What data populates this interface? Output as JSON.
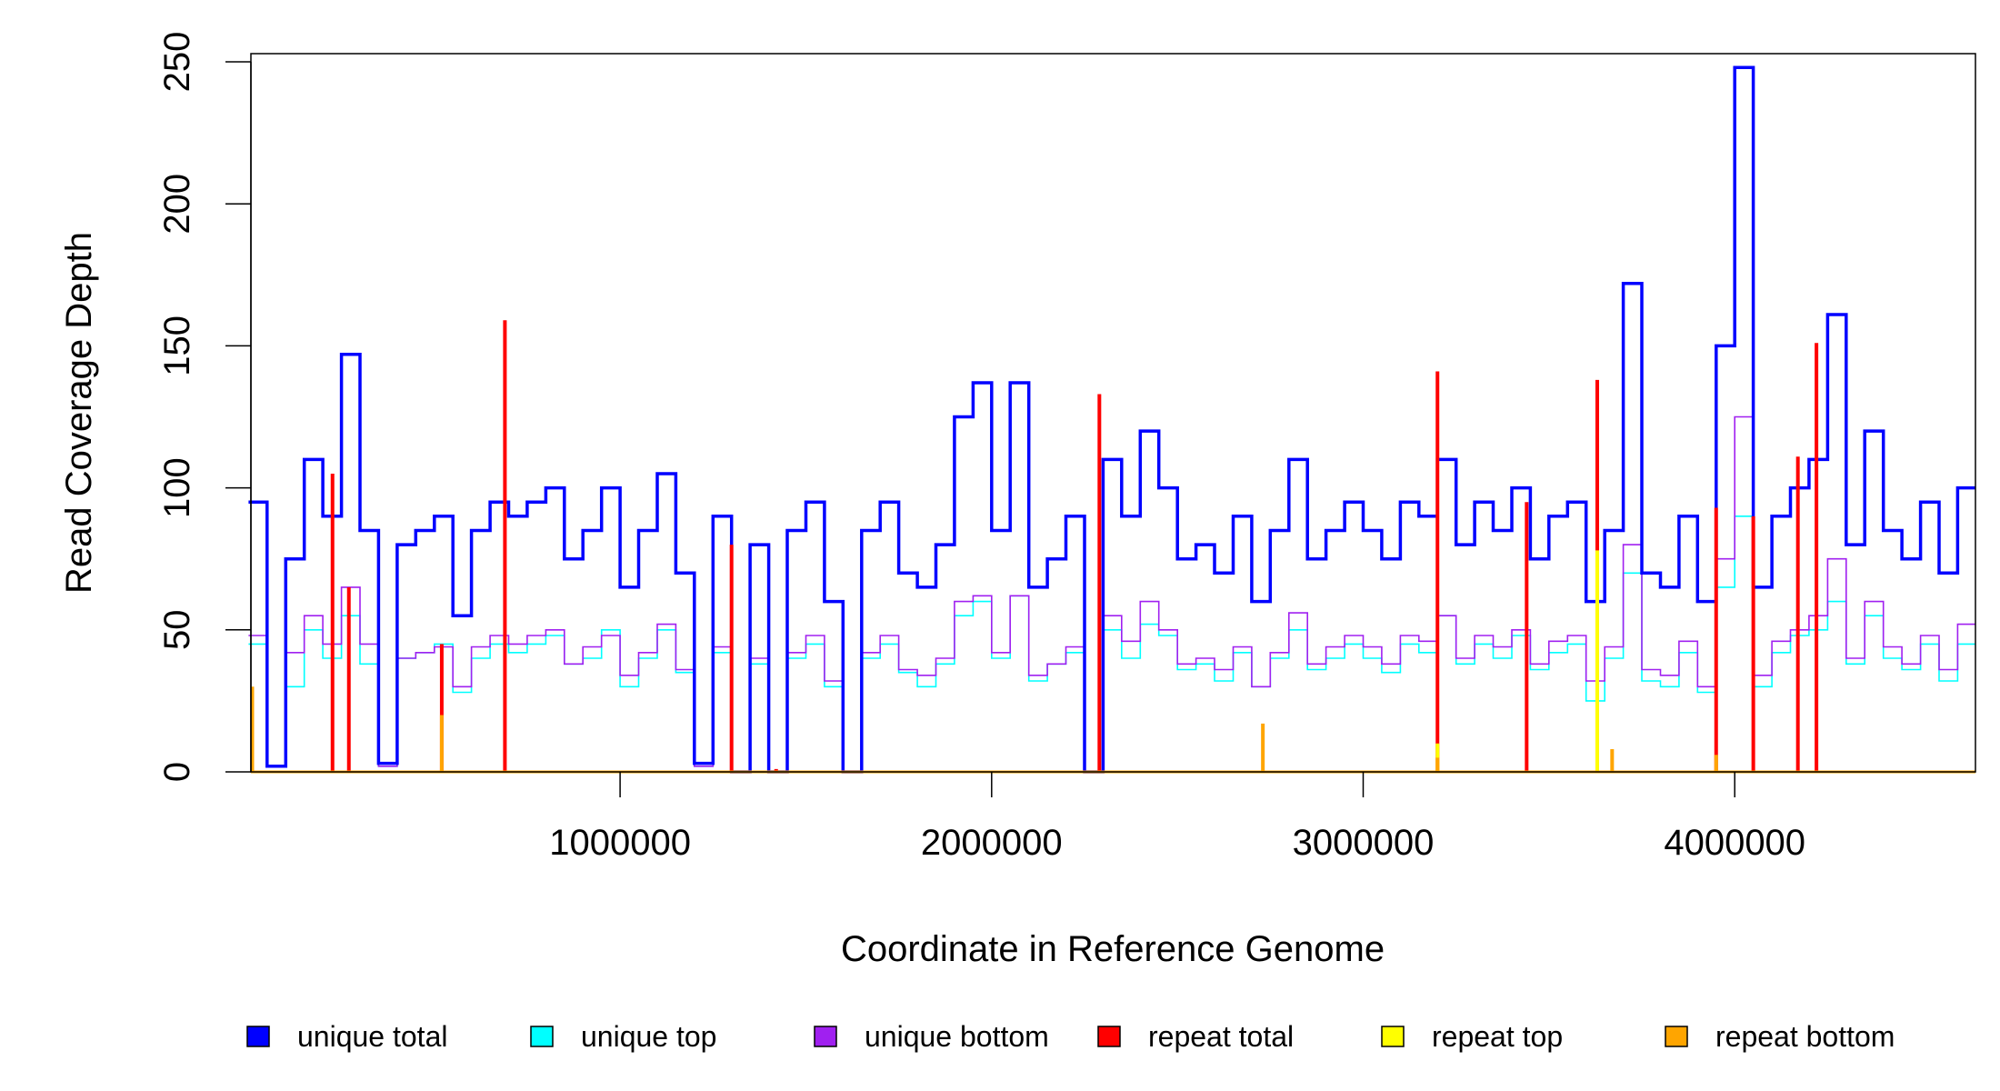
{
  "chart_data": {
    "type": "line",
    "title": "",
    "xlabel": "Coordinate in Reference Genome",
    "ylabel": "Read Coverage Depth",
    "xlim": [
      0,
      4650000
    ],
    "ylim": [
      0,
      250
    ],
    "xticks": [
      1000000,
      2000000,
      3000000,
      4000000
    ],
    "xtick_labels": [
      "1000000",
      "2000000",
      "3000000",
      "4000000"
    ],
    "yticks": [
      0,
      50,
      100,
      150,
      200,
      250
    ],
    "ytick_labels": [
      "0",
      "50",
      "100",
      "150",
      "200",
      "250"
    ],
    "grid": false,
    "legend_position": "bottom",
    "bin_size": 50000,
    "series": [
      {
        "name": "unique total",
        "color": "#0000FF",
        "style": "step",
        "values": [
          95,
          2,
          75,
          110,
          90,
          147,
          85,
          3,
          80,
          85,
          90,
          55,
          85,
          95,
          90,
          95,
          100,
          75,
          85,
          100,
          65,
          85,
          105,
          70,
          3,
          90,
          0,
          80,
          0,
          85,
          95,
          60,
          0,
          85,
          95,
          70,
          65,
          80,
          125,
          137,
          85,
          137,
          65,
          75,
          90,
          0,
          110,
          90,
          120,
          100,
          75,
          80,
          70,
          90,
          60,
          85,
          110,
          75,
          85,
          95,
          85,
          75,
          95,
          90,
          110,
          80,
          95,
          85,
          100,
          75,
          90,
          95,
          60,
          85,
          172,
          70,
          65,
          90,
          60,
          150,
          248,
          65,
          90,
          100,
          110,
          161,
          80,
          120,
          85,
          75,
          95,
          70,
          100
        ]
      },
      {
        "name": "unique top",
        "color": "#00FFFF",
        "style": "step",
        "values": [
          45,
          2,
          30,
          50,
          40,
          55,
          38,
          2,
          40,
          42,
          45,
          28,
          40,
          45,
          42,
          45,
          48,
          38,
          40,
          50,
          30,
          40,
          50,
          35,
          2,
          42,
          0,
          38,
          0,
          40,
          45,
          30,
          0,
          40,
          45,
          35,
          30,
          38,
          55,
          60,
          40,
          62,
          32,
          38,
          42,
          0,
          50,
          40,
          52,
          48,
          36,
          38,
          32,
          42,
          30,
          40,
          50,
          36,
          40,
          45,
          40,
          35,
          45,
          42,
          55,
          38,
          45,
          40,
          48,
          36,
          42,
          45,
          25,
          40,
          70,
          32,
          30,
          42,
          28,
          65,
          90,
          30,
          42,
          48,
          50,
          60,
          38,
          55,
          40,
          36,
          45,
          32,
          45
        ]
      },
      {
        "name": "unique bottom",
        "color": "#A020F0",
        "style": "step",
        "values": [
          48,
          2,
          42,
          55,
          45,
          65,
          45,
          2,
          40,
          42,
          44,
          30,
          44,
          48,
          45,
          48,
          50,
          38,
          44,
          48,
          34,
          42,
          52,
          36,
          2,
          44,
          0,
          40,
          0,
          42,
          48,
          32,
          0,
          42,
          48,
          36,
          34,
          40,
          60,
          62,
          42,
          62,
          34,
          38,
          44,
          0,
          55,
          46,
          60,
          50,
          38,
          40,
          36,
          44,
          30,
          42,
          56,
          38,
          44,
          48,
          44,
          38,
          48,
          46,
          55,
          40,
          48,
          44,
          50,
          38,
          46,
          48,
          32,
          44,
          80,
          36,
          34,
          46,
          30,
          75,
          125,
          34,
          46,
          50,
          55,
          75,
          40,
          60,
          44,
          38,
          48,
          36,
          52
        ]
      },
      {
        "name": "repeat total",
        "color": "#FF0000",
        "style": "spikes",
        "points": [
          [
            226000,
            105
          ],
          [
            270000,
            65
          ],
          [
            520000,
            45
          ],
          [
            690000,
            159
          ],
          [
            1300000,
            80
          ],
          [
            1420000,
            1
          ],
          [
            2290000,
            133
          ],
          [
            3200000,
            141
          ],
          [
            3440000,
            95
          ],
          [
            3630000,
            138
          ],
          [
            3950000,
            93
          ],
          [
            4050000,
            90
          ],
          [
            4170000,
            111
          ],
          [
            4220000,
            151
          ]
        ]
      },
      {
        "name": "repeat top",
        "color": "#FFFF00",
        "style": "spikes",
        "points": [
          [
            3630000,
            78
          ],
          [
            3200000,
            10
          ]
        ]
      },
      {
        "name": "repeat bottom",
        "color": "#FFA500",
        "style": "spikes",
        "points": [
          [
            10000,
            30
          ],
          [
            520000,
            20
          ],
          [
            2730000,
            17
          ],
          [
            3200000,
            5
          ],
          [
            3670000,
            8
          ],
          [
            3950000,
            6
          ]
        ]
      }
    ]
  }
}
